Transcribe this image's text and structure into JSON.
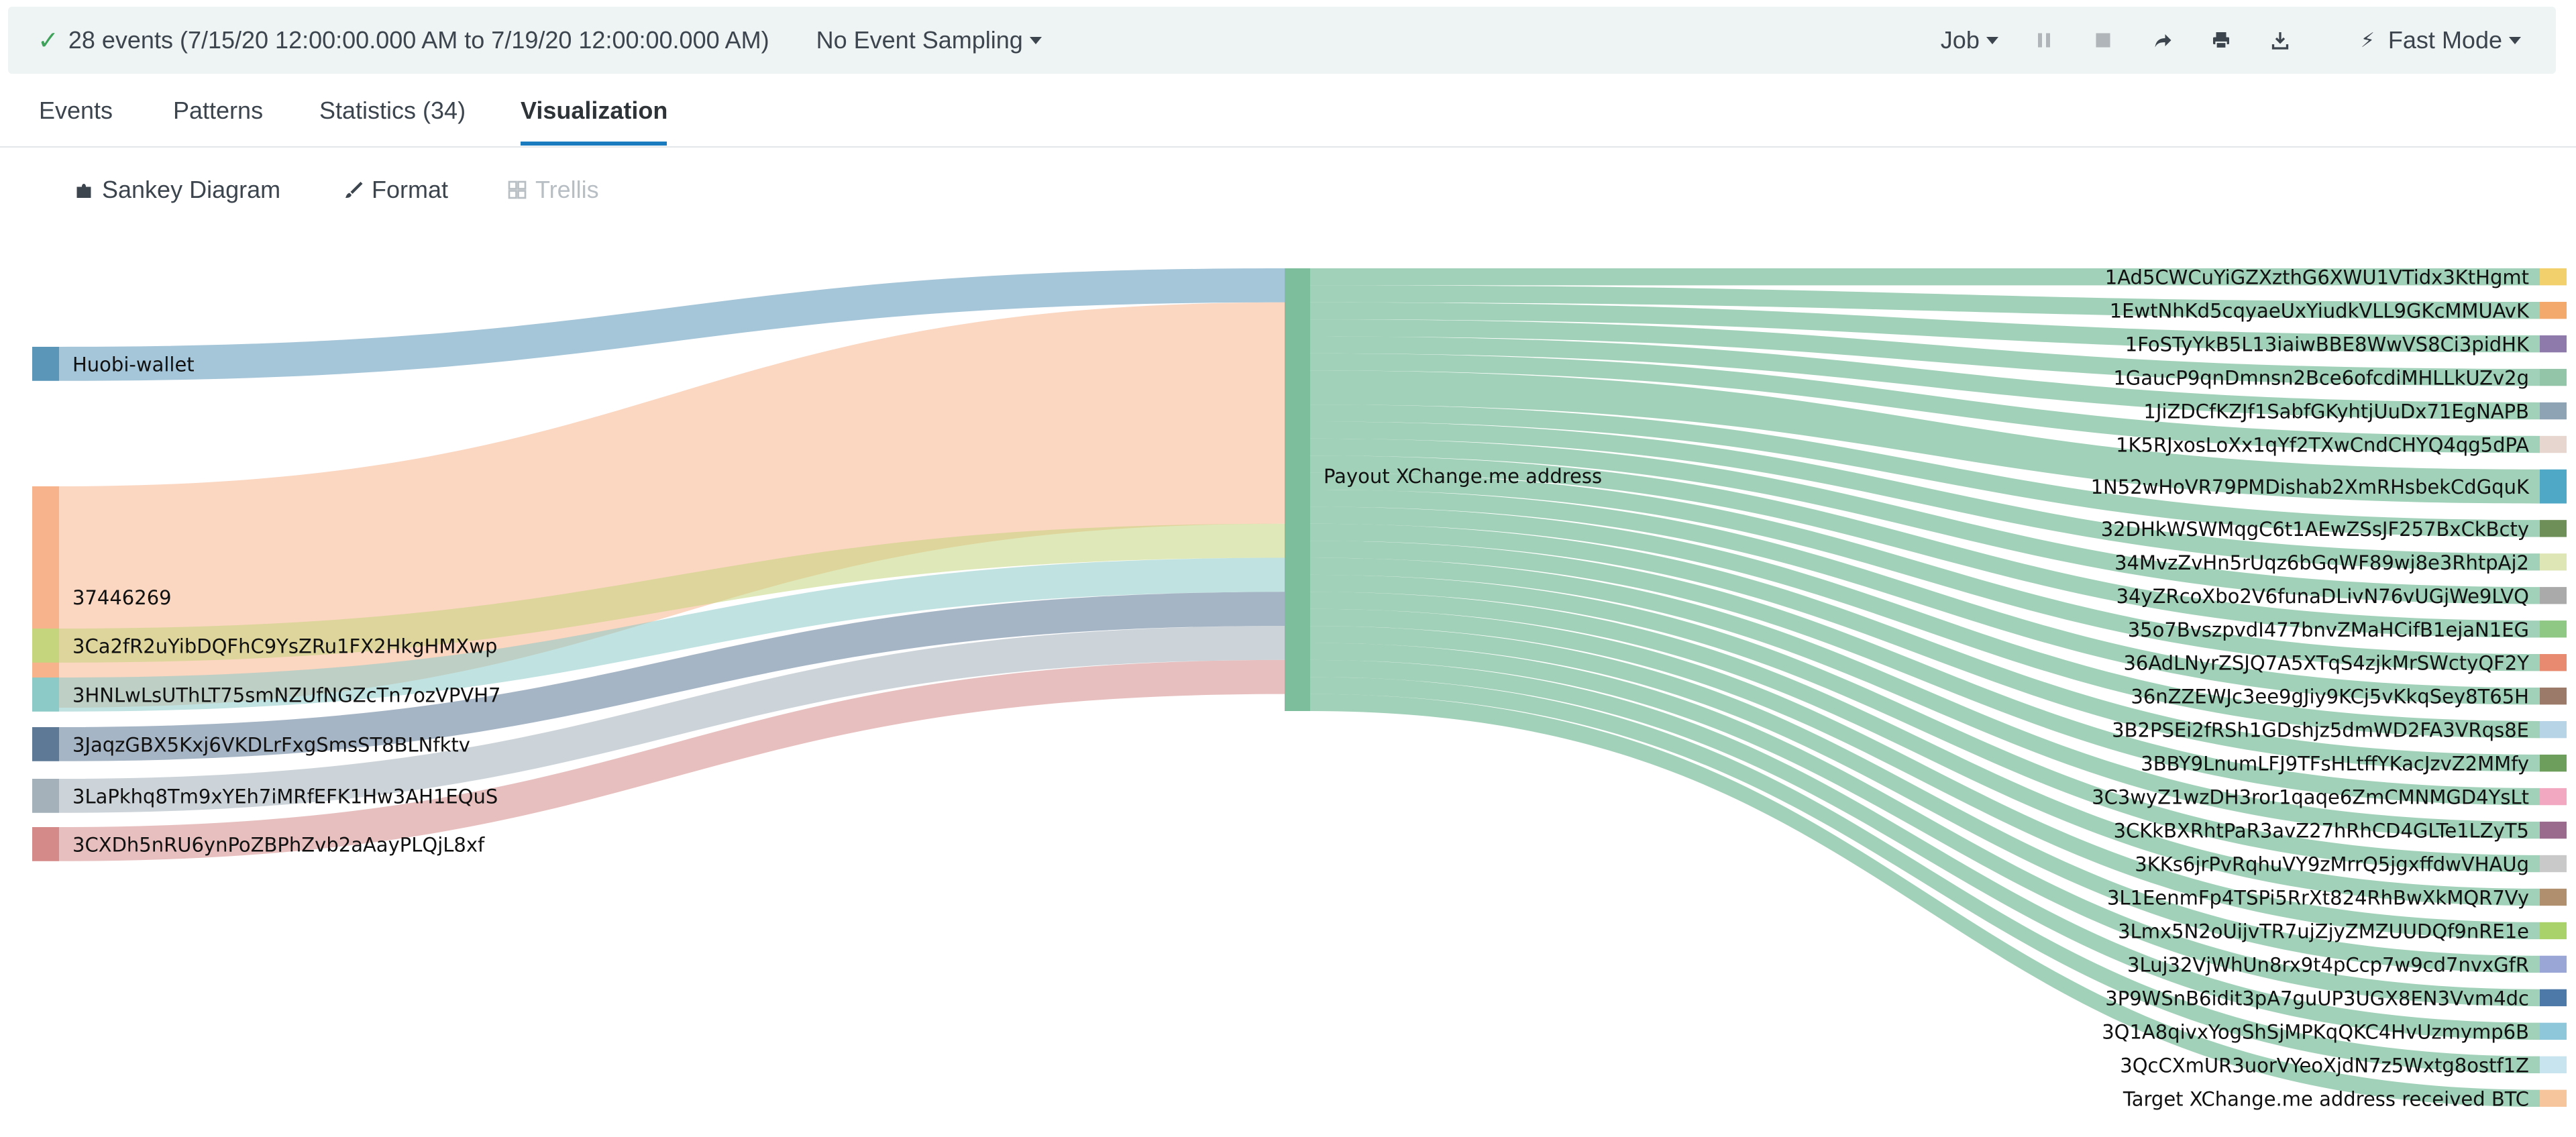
{
  "job": {
    "status": "28 events (7/15/20 12:00:00.000 AM to 7/19/20 12:00:00.000 AM)",
    "sampling": "No Event Sampling",
    "job_menu": "Job",
    "mode": "Fast Mode",
    "icons": [
      "check-icon",
      "pause-icon",
      "stop-icon",
      "share-icon",
      "print-icon",
      "export-icon",
      "bolt-icon"
    ]
  },
  "tabs": [
    {
      "label": "Events"
    },
    {
      "label": "Patterns"
    },
    {
      "label": "Statistics (34)"
    },
    {
      "label": "Visualization"
    }
  ],
  "active_tab": 3,
  "viz_toolbar": {
    "type_label": "Sankey Diagram",
    "format_label": "Format",
    "trellis_label": "Trellis"
  },
  "chart_data": {
    "type": "sankey",
    "hub": {
      "name": "Payout XChange.me address",
      "color": "#7dbf9c"
    },
    "sources": [
      {
        "name": "Huobi-wallet",
        "value": 2,
        "color": "#5b95b8"
      },
      {
        "name": "37446269",
        "value": 13,
        "color": "#f7b48c"
      },
      {
        "name": "3Ca2fR2uYibDQFhC9YsZRu1FX2HkgHMXwp",
        "value": 2,
        "color": "#c4d57e"
      },
      {
        "name": "3HNLwLsUThLT75smNZUfNGZcTn7ozVPVH7",
        "value": 2,
        "color": "#8ccac8"
      },
      {
        "name": "3JaqzGBX5Kxj6VKDLrFxgSmsST8BLNfktv",
        "value": 2,
        "color": "#5d7996"
      },
      {
        "name": "3LaPkhq8Tm9xYEh7iMRfEFK1Hw3AH1EQuS",
        "value": 2,
        "color": "#a4b1ba"
      },
      {
        "name": "3CXDh5nRU6ynPoZBPhZvb2aAayPLQjL8xf",
        "value": 2,
        "color": "#d48a88"
      }
    ],
    "targets": [
      {
        "name": "1Ad5CWCuYiGZXzthG6XWU1VTidx3KtHgmt",
        "value": 1,
        "color": "#f2d06b"
      },
      {
        "name": "1EwtNhKd5cqyaeUxYiudkVLL9GKcMMUAvK",
        "value": 1,
        "color": "#f3a96b"
      },
      {
        "name": "1FoSTyYkB5L13iaiwBBE8WwVS8Ci3pidHK",
        "value": 1,
        "color": "#8f7bab"
      },
      {
        "name": "1GaucP9qnDmnsn2Bce6ofcdiMHLLkUZv2g",
        "value": 1,
        "color": "#93c5a8"
      },
      {
        "name": "1JiZDCfKZJf1SabfGKyhtjUuDx71EgNAPB",
        "value": 1,
        "color": "#8ea3b3"
      },
      {
        "name": "1K5RJxosLoXx1qYf2TXwCndCHYQ4qg5dPA",
        "value": 1,
        "color": "#e6d6cf"
      },
      {
        "name": "1N52wHoVR79PMDishab2XmRHsbekCdGquK",
        "value": 2,
        "color": "#4fa8c5"
      },
      {
        "name": "32DHkWSWMqgC6t1AEwZSsJF257BxCkBcty",
        "value": 1,
        "color": "#6f8f59"
      },
      {
        "name": "34MvzZvHn5rUqz6bGqWF89wj8e3RhtpAj2",
        "value": 1,
        "color": "#dfe6b5"
      },
      {
        "name": "34yZRcoXbo2V6funaDLivN76vUGjWe9LVQ",
        "value": 1,
        "color": "#a9aaa9"
      },
      {
        "name": "35o7BvszpvdI477bnvZMaHCifB1ejaN1EG",
        "value": 1,
        "color": "#8fc784"
      },
      {
        "name": "36AdLNyrZSJQ7A5XTqS4zjkMrSWctyQF2Y",
        "value": 1,
        "color": "#e88a6f"
      },
      {
        "name": "36nZZEWJc3ee9gJiy9KCj5vKkqSey8T65H",
        "value": 1,
        "color": "#9c7a6a"
      },
      {
        "name": "3B2PSEi2fRSh1GDshjz5dmWD2FA3VRqs8E",
        "value": 1,
        "color": "#b7d3e6"
      },
      {
        "name": "3BBY9LnumLFJ9TFsHLtffYKacJzvZ2MMfy",
        "value": 1,
        "color": "#6e9e5b"
      },
      {
        "name": "3C3wyZ1wzDH3ror1qaqe6ZmCMNMGD4YsLt",
        "value": 1,
        "color": "#f2a8c0"
      },
      {
        "name": "3CKkBXRhtPaR3avZ27hRhCD4GLTe1LZyT5",
        "value": 1,
        "color": "#9b6b8e"
      },
      {
        "name": "3KKs6jrPvRqhuVY9zMrrQ5jgxffdwVHAUg",
        "value": 1,
        "color": "#c9c9c9"
      },
      {
        "name": "3L1EenmFp4TSPi5RrXt824RhBwXkMQR7Vy",
        "value": 1,
        "color": "#b08f6e"
      },
      {
        "name": "3Lmx5N2oUijvTR7ujZjyZMZUUDQf9nRE1e",
        "value": 1,
        "color": "#a9d36a"
      },
      {
        "name": "3Luj32VjWhUn8rx9t4pCcp7w9cd7nvxGfR",
        "value": 1,
        "color": "#9aa7d6"
      },
      {
        "name": "3P9WSnB6idit3pA7guUP3UGX8EN3Vvm4dc",
        "value": 1,
        "color": "#4d79a8"
      },
      {
        "name": "3Q1A8qivxYogShSjMPKqQKC4HvUzmymp6B",
        "value": 1,
        "color": "#8ec6da"
      },
      {
        "name": "3QcCXmUR3uorVYeoXjdN7z5Wxtg8ostf1Z",
        "value": 1,
        "color": "#c8e5ef"
      },
      {
        "name": "Target XChange.me address received BTC",
        "value": 1,
        "color": "#f7c59b"
      }
    ]
  }
}
